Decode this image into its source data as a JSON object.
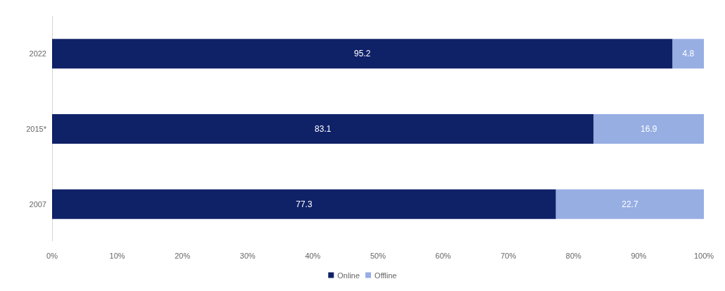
{
  "chart_data": {
    "type": "bar",
    "orientation": "horizontal",
    "stacked": true,
    "categories": [
      "2022",
      "2015*",
      "2007"
    ],
    "series": [
      {
        "name": "Online",
        "color": "#0f2167",
        "values": [
          95.2,
          83.1,
          77.3
        ]
      },
      {
        "name": "Offline",
        "color": "#97aee3",
        "values": [
          4.8,
          16.9,
          22.7
        ]
      }
    ],
    "xlim": [
      0,
      100
    ],
    "xticks": [
      {
        "value": 0,
        "label": "0%"
      },
      {
        "value": 10,
        "label": "10%"
      },
      {
        "value": 20,
        "label": "20%"
      },
      {
        "value": 30,
        "label": "30%"
      },
      {
        "value": 40,
        "label": "40%"
      },
      {
        "value": 50,
        "label": "50%"
      },
      {
        "value": 60,
        "label": "60%"
      },
      {
        "value": 70,
        "label": "70%"
      },
      {
        "value": 80,
        "label": "80%"
      },
      {
        "value": 90,
        "label": "90%"
      },
      {
        "value": 100,
        "label": "100%"
      }
    ],
    "data_labels": true,
    "grid": false,
    "legend": "bottom"
  }
}
